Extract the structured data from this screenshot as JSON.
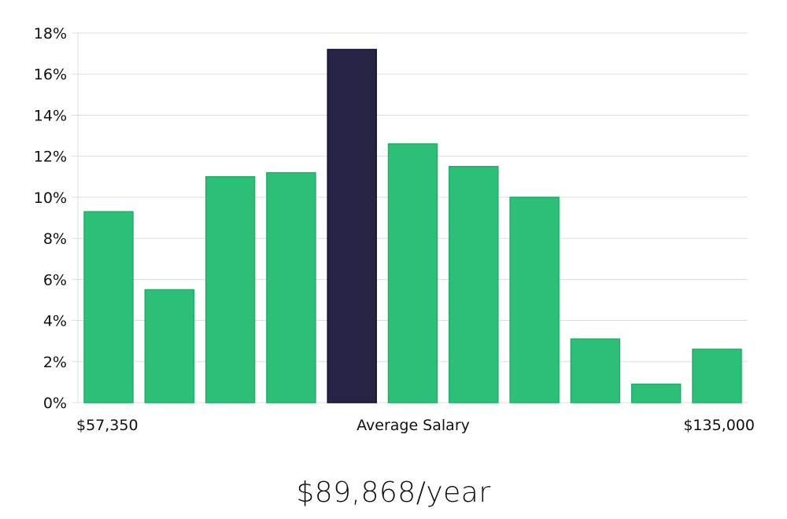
{
  "headline": "$89,868/year",
  "chart_data": {
    "type": "bar",
    "values": [
      9.3,
      5.5,
      11.0,
      11.2,
      17.2,
      12.6,
      11.5,
      10.0,
      3.1,
      0.9,
      2.6
    ],
    "highlight_index": 4,
    "y_ticks": [
      "0%",
      "2%",
      "4%",
      "6%",
      "8%",
      "10%",
      "12%",
      "14%",
      "16%",
      "18%"
    ],
    "ylim": [
      0,
      18
    ],
    "x_labels": {
      "left": "$57,350",
      "center": "Average Salary",
      "right": "$135,000"
    },
    "grid": true,
    "colors": {
      "bar": "#2bbf77",
      "bar_stroke": "#22ad69",
      "highlight": "#272345",
      "highlight_stroke": "#141230"
    }
  }
}
